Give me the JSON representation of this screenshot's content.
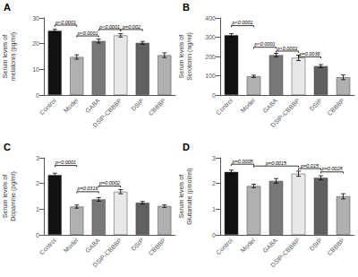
{
  "chart_data": [
    {
      "type": "bar",
      "title": "A",
      "ylabel": "Serum levels of\nmelatonin (pg/ml)",
      "categories": [
        "Control",
        "Model",
        "GABA",
        "DSIP-CBBBP",
        "DSIP",
        "CBBBP"
      ],
      "values": [
        25.0,
        14.8,
        21.0,
        23.2,
        20.3,
        15.5
      ],
      "errors": [
        0.55,
        0.85,
        0.75,
        0.65,
        0.55,
        0.9
      ],
      "colors": [
        "#111111",
        "#b0b0b0",
        "#787878",
        "#e8e8e8",
        "#606060",
        "#b0b0b0"
      ],
      "ylim": [
        0,
        30
      ],
      "yticks": [
        0,
        10,
        20,
        30
      ],
      "grid": false,
      "brackets": [
        {
          "from": "Control",
          "to": "Model",
          "y": 27.2,
          "label": "p<0.0001"
        },
        {
          "from": "Model",
          "to": "GABA",
          "y": 23.0,
          "label": "p<0.0001"
        },
        {
          "from": "GABA",
          "to": "DSIP-CBBBP",
          "y": 25.5,
          "label": "p<0.0001"
        },
        {
          "from": "DSIP-CBBBP",
          "to": "DSIP",
          "y": 25.5,
          "label": "p=0.002"
        }
      ]
    },
    {
      "type": "bar",
      "title": "B",
      "ylabel": "Serum levels of\nSerotonin (ng/ml)",
      "categories": [
        "Control",
        "Model",
        "GABA",
        "DSIP-CBBBP",
        "DSIP",
        "CBBBP"
      ],
      "values": [
        310,
        97,
        207,
        193,
        150,
        92
      ],
      "errors": [
        8,
        6,
        9,
        14,
        8,
        12
      ],
      "colors": [
        "#111111",
        "#b0b0b0",
        "#787878",
        "#e8e8e8",
        "#606060",
        "#b0b0b0"
      ],
      "ylim": [
        0,
        400
      ],
      "yticks": [
        0,
        100,
        200,
        300,
        400
      ],
      "grid": false,
      "brackets": [
        {
          "from": "Control",
          "to": "Model",
          "y": 360,
          "label": "p<0.0001"
        },
        {
          "from": "Model",
          "to": "GABA",
          "y": 248,
          "label": "p<0.0001"
        },
        {
          "from": "GABA",
          "to": "DSIP-CBBBP",
          "y": 228,
          "label": "p<0.0001"
        },
        {
          "from": "DSIP-CBBBP",
          "to": "DSIP",
          "y": 198,
          "label": "p=0.0036"
        }
      ]
    },
    {
      "type": "bar",
      "title": "C",
      "ylabel": "Serum levels of\nDopamine (pg/ml)",
      "categories": [
        "Control",
        "Model",
        "GABA",
        "DSIP-CBBBP",
        "DSIP",
        "CBBBP"
      ],
      "values": [
        2.33,
        1.1,
        1.38,
        1.68,
        1.25,
        1.12
      ],
      "errors": [
        0.07,
        0.06,
        0.07,
        0.08,
        0.05,
        0.05
      ],
      "colors": [
        "#111111",
        "#b0b0b0",
        "#787878",
        "#e8e8e8",
        "#606060",
        "#b0b0b0"
      ],
      "ylim": [
        0,
        3
      ],
      "yticks": [
        0,
        1,
        2,
        3
      ],
      "grid": false,
      "brackets": [
        {
          "from": "Control",
          "to": "Model",
          "y": 2.7,
          "label": "p<0.0001"
        },
        {
          "from": "Model",
          "to": "GABA",
          "y": 1.68,
          "label": "p=0.0316"
        },
        {
          "from": "GABA",
          "to": "DSIP-CBBBP",
          "y": 1.9,
          "label": "p=0.0002"
        }
      ]
    },
    {
      "type": "bar",
      "title": "D",
      "ylabel": "Serum levels of\nGlutamate (pmol/ml)",
      "categories": [
        "Control",
        "Model",
        "GABA",
        "DSIP-CBBBP",
        "DSIP",
        "CBBBP"
      ],
      "values": [
        2.45,
        1.9,
        2.1,
        2.38,
        2.22,
        1.5
      ],
      "errors": [
        0.07,
        0.07,
        0.09,
        0.1,
        0.08,
        0.1
      ],
      "colors": [
        "#111111",
        "#b0b0b0",
        "#787878",
        "#e8e8e8",
        "#606060",
        "#b0b0b0"
      ],
      "ylim": [
        0,
        3
      ],
      "yticks": [
        0,
        1,
        2,
        3
      ],
      "grid": false,
      "brackets": [
        {
          "from": "Control",
          "to": "Model",
          "y": 2.75,
          "label": "p=0.0008"
        },
        {
          "from": "Model",
          "to": "DSIP-CBBBP",
          "y": 2.68,
          "label": "p=0.0015"
        },
        {
          "from": "DSIP-CBBBP",
          "to": "DSIP",
          "y": 2.58,
          "label": "p=0.015"
        },
        {
          "from": "DSIP",
          "to": "CBBBP",
          "y": 2.45,
          "label": "p=0.0028"
        }
      ]
    }
  ]
}
